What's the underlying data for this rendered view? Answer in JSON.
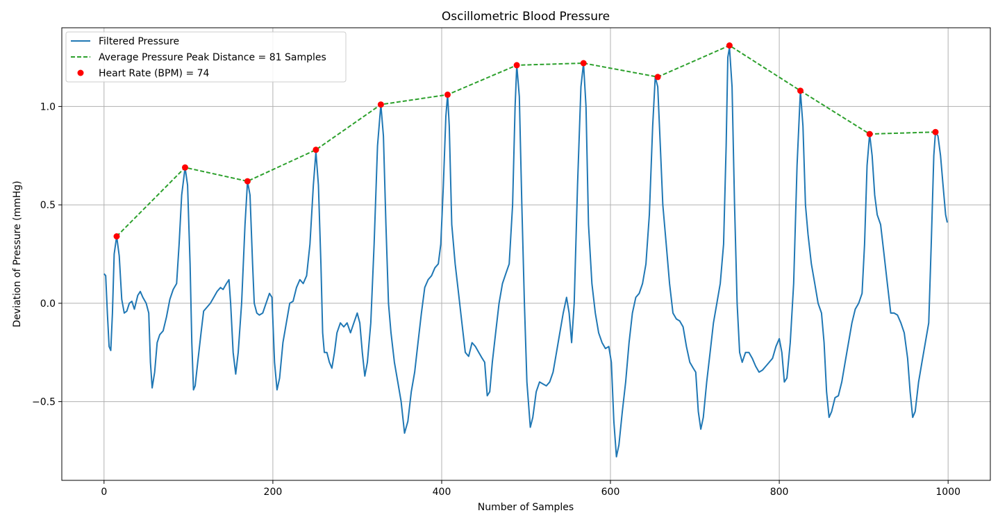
{
  "chart_data": {
    "type": "line",
    "title": "Oscillometric Blood Pressure",
    "xlabel": "Number of Samples",
    "ylabel": "Deviation of Pressure (mmHg)",
    "xlim": [
      -50,
      1050
    ],
    "ylim": [
      -0.9,
      1.4
    ],
    "x_ticks": [
      0,
      200,
      400,
      600,
      800,
      1000
    ],
    "x_tick_labels": [
      "0",
      "200",
      "400",
      "600",
      "800",
      "1000"
    ],
    "y_ticks": [
      -0.5,
      0.0,
      0.5,
      1.0
    ],
    "y_tick_labels": [
      "−0.5",
      "0.0",
      "0.5",
      "1.0"
    ],
    "grid": true,
    "legend_position": "top-left",
    "colors": {
      "filtered": "#1f77b4",
      "average": "#2ca02c",
      "peaks": "#ff0000"
    },
    "series": [
      {
        "name": "Filtered Pressure",
        "style": "solid-line",
        "color": "#1f77b4",
        "points": [
          [
            0,
            0.15
          ],
          [
            2,
            0.14
          ],
          [
            4,
            -0.05
          ],
          [
            6,
            -0.22
          ],
          [
            8,
            -0.24
          ],
          [
            10,
            -0.05
          ],
          [
            12,
            0.25
          ],
          [
            15,
            0.34
          ],
          [
            18,
            0.24
          ],
          [
            21,
            0.02
          ],
          [
            24,
            -0.05
          ],
          [
            27,
            -0.04
          ],
          [
            30,
            0.0
          ],
          [
            33,
            0.01
          ],
          [
            36,
            -0.03
          ],
          [
            40,
            0.04
          ],
          [
            43,
            0.06
          ],
          [
            46,
            0.03
          ],
          [
            50,
            0.0
          ],
          [
            53,
            -0.05
          ],
          [
            55,
            -0.3
          ],
          [
            57,
            -0.43
          ],
          [
            60,
            -0.35
          ],
          [
            63,
            -0.2
          ],
          [
            66,
            -0.16
          ],
          [
            70,
            -0.14
          ],
          [
            74,
            -0.07
          ],
          [
            78,
            0.02
          ],
          [
            82,
            0.07
          ],
          [
            86,
            0.1
          ],
          [
            89,
            0.3
          ],
          [
            92,
            0.55
          ],
          [
            96,
            0.69
          ],
          [
            99,
            0.6
          ],
          [
            102,
            0.2
          ],
          [
            104,
            -0.2
          ],
          [
            106,
            -0.44
          ],
          [
            108,
            -0.42
          ],
          [
            111,
            -0.3
          ],
          [
            115,
            -0.15
          ],
          [
            118,
            -0.04
          ],
          [
            122,
            -0.02
          ],
          [
            126,
            0.0
          ],
          [
            130,
            0.03
          ],
          [
            134,
            0.06
          ],
          [
            138,
            0.08
          ],
          [
            141,
            0.07
          ],
          [
            145,
            0.1
          ],
          [
            148,
            0.12
          ],
          [
            150,
            0.0
          ],
          [
            153,
            -0.25
          ],
          [
            156,
            -0.36
          ],
          [
            159,
            -0.25
          ],
          [
            163,
            0.0
          ],
          [
            167,
            0.4
          ],
          [
            170,
            0.62
          ],
          [
            173,
            0.55
          ],
          [
            176,
            0.2
          ],
          [
            178,
            0.0
          ],
          [
            181,
            -0.05
          ],
          [
            184,
            -0.06
          ],
          [
            188,
            -0.05
          ],
          [
            192,
            0.0
          ],
          [
            196,
            0.05
          ],
          [
            199,
            0.03
          ],
          [
            202,
            -0.3
          ],
          [
            205,
            -0.44
          ],
          [
            208,
            -0.38
          ],
          [
            212,
            -0.2
          ],
          [
            216,
            -0.1
          ],
          [
            220,
            0.0
          ],
          [
            224,
            0.01
          ],
          [
            228,
            0.08
          ],
          [
            232,
            0.12
          ],
          [
            236,
            0.1
          ],
          [
            240,
            0.14
          ],
          [
            244,
            0.3
          ],
          [
            248,
            0.6
          ],
          [
            251,
            0.77
          ],
          [
            254,
            0.6
          ],
          [
            257,
            0.2
          ],
          [
            259,
            -0.15
          ],
          [
            261,
            -0.25
          ],
          [
            264,
            -0.25
          ],
          [
            267,
            -0.3
          ],
          [
            270,
            -0.33
          ],
          [
            273,
            -0.25
          ],
          [
            276,
            -0.15
          ],
          [
            280,
            -0.1
          ],
          [
            284,
            -0.12
          ],
          [
            288,
            -0.1
          ],
          [
            292,
            -0.15
          ],
          [
            296,
            -0.1
          ],
          [
            300,
            -0.05
          ],
          [
            303,
            -0.1
          ],
          [
            306,
            -0.25
          ],
          [
            309,
            -0.37
          ],
          [
            312,
            -0.3
          ],
          [
            316,
            -0.1
          ],
          [
            320,
            0.3
          ],
          [
            324,
            0.8
          ],
          [
            328,
            1.01
          ],
          [
            331,
            0.85
          ],
          [
            334,
            0.4
          ],
          [
            337,
            0.0
          ],
          [
            340,
            -0.15
          ],
          [
            344,
            -0.3
          ],
          [
            348,
            -0.4
          ],
          [
            352,
            -0.5
          ],
          [
            356,
            -0.66
          ],
          [
            360,
            -0.6
          ],
          [
            364,
            -0.45
          ],
          [
            368,
            -0.35
          ],
          [
            372,
            -0.2
          ],
          [
            376,
            -0.05
          ],
          [
            380,
            0.08
          ],
          [
            384,
            0.12
          ],
          [
            388,
            0.14
          ],
          [
            392,
            0.18
          ],
          [
            396,
            0.2
          ],
          [
            399,
            0.3
          ],
          [
            402,
            0.6
          ],
          [
            405,
            0.95
          ],
          [
            407,
            1.06
          ],
          [
            409,
            0.9
          ],
          [
            412,
            0.4
          ],
          [
            416,
            0.2
          ],
          [
            420,
            0.05
          ],
          [
            424,
            -0.1
          ],
          [
            428,
            -0.25
          ],
          [
            432,
            -0.27
          ],
          [
            436,
            -0.2
          ],
          [
            440,
            -0.22
          ],
          [
            444,
            -0.25
          ],
          [
            448,
            -0.28
          ],
          [
            451,
            -0.3
          ],
          [
            454,
            -0.47
          ],
          [
            457,
            -0.45
          ],
          [
            460,
            -0.3
          ],
          [
            464,
            -0.15
          ],
          [
            468,
            0.0
          ],
          [
            472,
            0.1
          ],
          [
            476,
            0.15
          ],
          [
            480,
            0.2
          ],
          [
            484,
            0.5
          ],
          [
            487,
            1.0
          ],
          [
            489,
            1.21
          ],
          [
            492,
            1.05
          ],
          [
            495,
            0.5
          ],
          [
            498,
            0.0
          ],
          [
            501,
            -0.4
          ],
          [
            505,
            -0.63
          ],
          [
            508,
            -0.58
          ],
          [
            512,
            -0.45
          ],
          [
            516,
            -0.4
          ],
          [
            520,
            -0.41
          ],
          [
            524,
            -0.42
          ],
          [
            528,
            -0.4
          ],
          [
            532,
            -0.35
          ],
          [
            536,
            -0.25
          ],
          [
            540,
            -0.15
          ],
          [
            544,
            -0.05
          ],
          [
            548,
            0.03
          ],
          [
            551,
            -0.05
          ],
          [
            554,
            -0.2
          ],
          [
            557,
            0.0
          ],
          [
            561,
            0.6
          ],
          [
            565,
            1.1
          ],
          [
            568,
            1.22
          ],
          [
            571,
            1.0
          ],
          [
            574,
            0.4
          ],
          [
            578,
            0.1
          ],
          [
            582,
            -0.05
          ],
          [
            586,
            -0.15
          ],
          [
            590,
            -0.2
          ],
          [
            594,
            -0.23
          ],
          [
            598,
            -0.22
          ],
          [
            601,
            -0.3
          ],
          [
            604,
            -0.6
          ],
          [
            607,
            -0.78
          ],
          [
            610,
            -0.72
          ],
          [
            614,
            -0.55
          ],
          [
            618,
            -0.4
          ],
          [
            622,
            -0.2
          ],
          [
            626,
            -0.05
          ],
          [
            630,
            0.03
          ],
          [
            634,
            0.05
          ],
          [
            638,
            0.1
          ],
          [
            642,
            0.2
          ],
          [
            646,
            0.45
          ],
          [
            650,
            0.9
          ],
          [
            653,
            1.15
          ],
          [
            656,
            1.1
          ],
          [
            659,
            0.8
          ],
          [
            662,
            0.5
          ],
          [
            666,
            0.3
          ],
          [
            670,
            0.1
          ],
          [
            674,
            -0.05
          ],
          [
            678,
            -0.08
          ],
          [
            682,
            -0.09
          ],
          [
            686,
            -0.12
          ],
          [
            690,
            -0.22
          ],
          [
            694,
            -0.3
          ],
          [
            698,
            -0.33
          ],
          [
            701,
            -0.35
          ],
          [
            704,
            -0.55
          ],
          [
            707,
            -0.64
          ],
          [
            710,
            -0.58
          ],
          [
            714,
            -0.4
          ],
          [
            718,
            -0.25
          ],
          [
            722,
            -0.1
          ],
          [
            726,
            0.0
          ],
          [
            730,
            0.1
          ],
          [
            734,
            0.3
          ],
          [
            737,
            0.8
          ],
          [
            739,
            1.25
          ],
          [
            741,
            1.3
          ],
          [
            744,
            1.1
          ],
          [
            747,
            0.5
          ],
          [
            750,
            0.0
          ],
          [
            753,
            -0.25
          ],
          [
            756,
            -0.3
          ],
          [
            760,
            -0.25
          ],
          [
            764,
            -0.25
          ],
          [
            768,
            -0.28
          ],
          [
            772,
            -0.32
          ],
          [
            776,
            -0.35
          ],
          [
            780,
            -0.34
          ],
          [
            784,
            -0.32
          ],
          [
            788,
            -0.3
          ],
          [
            792,
            -0.28
          ],
          [
            796,
            -0.22
          ],
          [
            800,
            -0.18
          ],
          [
            803,
            -0.25
          ],
          [
            806,
            -0.4
          ],
          [
            809,
            -0.38
          ],
          [
            813,
            -0.2
          ],
          [
            817,
            0.1
          ],
          [
            821,
            0.7
          ],
          [
            825,
            1.08
          ],
          [
            828,
            0.9
          ],
          [
            831,
            0.5
          ],
          [
            834,
            0.35
          ],
          [
            838,
            0.2
          ],
          [
            842,
            0.1
          ],
          [
            846,
            0.0
          ],
          [
            850,
            -0.05
          ],
          [
            853,
            -0.2
          ],
          [
            856,
            -0.45
          ],
          [
            859,
            -0.58
          ],
          [
            862,
            -0.55
          ],
          [
            866,
            -0.48
          ],
          [
            870,
            -0.47
          ],
          [
            874,
            -0.4
          ],
          [
            878,
            -0.3
          ],
          [
            882,
            -0.2
          ],
          [
            886,
            -0.1
          ],
          [
            890,
            -0.03
          ],
          [
            894,
            0.0
          ],
          [
            898,
            0.05
          ],
          [
            901,
            0.3
          ],
          [
            904,
            0.7
          ],
          [
            907,
            0.86
          ],
          [
            910,
            0.75
          ],
          [
            913,
            0.55
          ],
          [
            916,
            0.45
          ],
          [
            920,
            0.4
          ],
          [
            924,
            0.25
          ],
          [
            928,
            0.1
          ],
          [
            932,
            -0.05
          ],
          [
            936,
            -0.05
          ],
          [
            940,
            -0.06
          ],
          [
            944,
            -0.1
          ],
          [
            948,
            -0.15
          ],
          [
            952,
            -0.28
          ],
          [
            955,
            -0.45
          ],
          [
            958,
            -0.58
          ],
          [
            961,
            -0.55
          ],
          [
            965,
            -0.4
          ],
          [
            969,
            -0.3
          ],
          [
            973,
            -0.2
          ],
          [
            977,
            -0.1
          ],
          [
            980,
            0.3
          ],
          [
            983,
            0.75
          ],
          [
            985,
            0.87
          ],
          [
            988,
            0.85
          ],
          [
            991,
            0.75
          ],
          [
            994,
            0.6
          ],
          [
            997,
            0.45
          ],
          [
            999,
            0.41
          ]
        ]
      },
      {
        "name": "Average Pressure Peak Distance = 81 Samples",
        "style": "dashed-line",
        "color": "#2ca02c",
        "points": [
          [
            15,
            0.34
          ],
          [
            96,
            0.69
          ],
          [
            170,
            0.62
          ],
          [
            251,
            0.78
          ],
          [
            328,
            1.01
          ],
          [
            407,
            1.06
          ],
          [
            489,
            1.21
          ],
          [
            568,
            1.22
          ],
          [
            656,
            1.15
          ],
          [
            741,
            1.31
          ],
          [
            825,
            1.08
          ],
          [
            907,
            0.86
          ],
          [
            985,
            0.87
          ]
        ]
      },
      {
        "name": "Heart Rate (BPM) = 74",
        "style": "markers",
        "color": "#ff0000",
        "points": [
          [
            15,
            0.34
          ],
          [
            96,
            0.69
          ],
          [
            170,
            0.62
          ],
          [
            251,
            0.78
          ],
          [
            328,
            1.01
          ],
          [
            407,
            1.06
          ],
          [
            489,
            1.21
          ],
          [
            568,
            1.22
          ],
          [
            656,
            1.15
          ],
          [
            741,
            1.31
          ],
          [
            825,
            1.08
          ],
          [
            907,
            0.86
          ],
          [
            985,
            0.87
          ]
        ]
      }
    ]
  }
}
